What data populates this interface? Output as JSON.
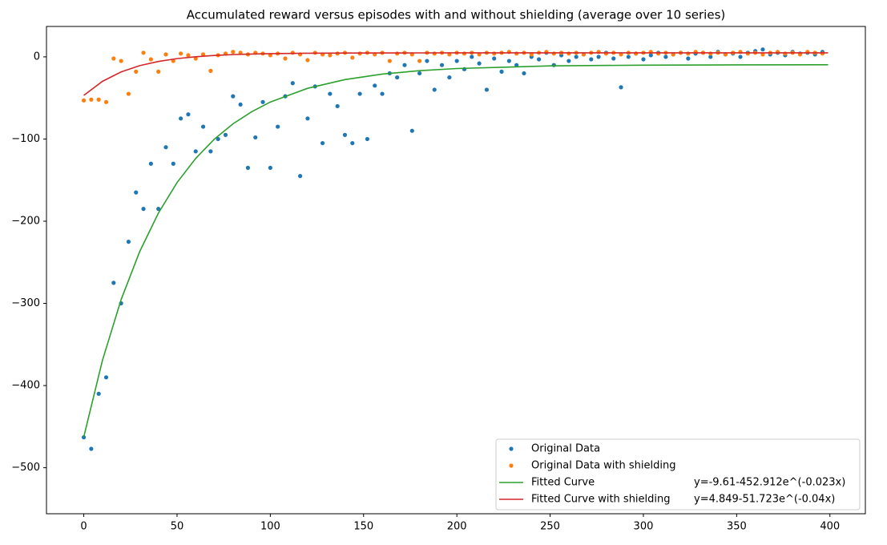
{
  "chart_data": {
    "type": "scatter_fit",
    "title": "Accumulated reward versus episodes with and without shielding (average over 10 series)",
    "xlim": [
      -20,
      419
    ],
    "ylim": [
      -556,
      37
    ],
    "xticks": [
      0,
      50,
      100,
      150,
      200,
      250,
      300,
      350,
      400
    ],
    "yticks": [
      {
        "value": -500,
        "label": "−500"
      },
      {
        "value": -400,
        "label": "−400"
      },
      {
        "value": -300,
        "label": "−300"
      },
      {
        "value": -200,
        "label": "−200"
      },
      {
        "value": -100,
        "label": "−100"
      },
      0
    ],
    "legend": "lower right",
    "series": [
      {
        "name": "Original Data",
        "kind": "points",
        "color": "#1f77b4",
        "x": [
          0,
          4,
          8,
          12,
          16,
          20,
          24,
          28,
          32,
          36,
          40,
          44,
          48,
          52,
          56,
          60,
          64,
          68,
          72,
          76,
          80,
          84,
          88,
          92,
          96,
          100,
          104,
          108,
          112,
          116,
          120,
          124,
          128,
          132,
          136,
          140,
          144,
          148,
          152,
          156,
          160,
          164,
          168,
          172,
          176,
          180,
          184,
          188,
          192,
          196,
          200,
          204,
          208,
          212,
          216,
          220,
          224,
          228,
          232,
          236,
          240,
          244,
          248,
          252,
          256,
          260,
          264,
          268,
          272,
          276,
          280,
          284,
          288,
          292,
          296,
          300,
          304,
          308,
          312,
          316,
          320,
          324,
          328,
          332,
          336,
          340,
          344,
          348,
          352,
          356,
          360,
          364,
          368,
          372,
          376,
          380,
          384,
          388,
          392,
          396
        ],
        "values": [
          -463,
          -477,
          -410,
          -390,
          -275,
          -300,
          -225,
          -165,
          -185,
          -130,
          -185,
          -110,
          -130,
          -75,
          -70,
          -115,
          -85,
          -115,
          -100,
          -95,
          -48,
          -58,
          -135,
          -98,
          -55,
          -135,
          -85,
          -48,
          -32,
          -145,
          -75,
          -36,
          -105,
          -45,
          -60,
          -95,
          -105,
          -45,
          -100,
          -35,
          -45,
          -20,
          -25,
          -10,
          -90,
          -20,
          -5,
          -40,
          -10,
          -25,
          -5,
          -15,
          0,
          -8,
          -40,
          -2,
          -18,
          -5,
          -10,
          -20,
          0,
          -3,
          5,
          -10,
          2,
          -5,
          0,
          3,
          -3,
          0,
          5,
          -2,
          -37,
          0,
          4,
          -3,
          2,
          5,
          0,
          3,
          5,
          -2,
          4,
          5,
          0,
          6,
          3,
          4,
          0,
          5,
          7,
          9,
          3,
          5,
          2,
          6,
          4,
          5,
          3,
          6
        ]
      },
      {
        "name": "Original Data with shielding",
        "kind": "points",
        "color": "#ff7f0e",
        "x": [
          0,
          4,
          8,
          12,
          16,
          20,
          24,
          28,
          32,
          36,
          40,
          44,
          48,
          52,
          56,
          60,
          64,
          68,
          72,
          76,
          80,
          84,
          88,
          92,
          96,
          100,
          104,
          108,
          112,
          116,
          120,
          124,
          128,
          132,
          136,
          140,
          144,
          148,
          152,
          156,
          160,
          164,
          168,
          172,
          176,
          180,
          184,
          188,
          192,
          196,
          200,
          204,
          208,
          212,
          216,
          220,
          224,
          228,
          232,
          236,
          240,
          244,
          248,
          252,
          256,
          260,
          264,
          268,
          272,
          276,
          280,
          284,
          288,
          292,
          296,
          300,
          304,
          308,
          312,
          316,
          320,
          324,
          328,
          332,
          336,
          340,
          344,
          348,
          352,
          356,
          360,
          364,
          368,
          372,
          376,
          380,
          384,
          388,
          392,
          396
        ],
        "values": [
          -53,
          -52,
          -52,
          -55,
          -2,
          -5,
          -45,
          -18,
          5,
          -3,
          -18,
          3,
          -5,
          4,
          2,
          -2,
          3,
          -17,
          2,
          4,
          6,
          5,
          3,
          5,
          4,
          2,
          4,
          -2,
          5,
          3,
          -4,
          5,
          3,
          2,
          4,
          5,
          -1,
          4,
          5,
          3,
          5,
          -5,
          4,
          5,
          3,
          -5,
          5,
          4,
          5,
          3,
          5,
          4,
          5,
          3,
          5,
          4,
          5,
          6,
          4,
          5,
          3,
          5,
          6,
          4,
          5,
          4,
          5,
          3,
          5,
          6,
          4,
          5,
          3,
          5,
          4,
          5,
          6,
          4,
          5,
          3,
          5,
          4,
          6,
          5,
          4,
          5,
          3,
          5,
          6,
          4,
          5,
          3,
          5,
          6,
          4,
          5,
          3,
          6,
          5,
          4
        ]
      },
      {
        "name": "Fitted Curve",
        "equation": "y=-9.61-452.912e^(-0.023x)",
        "kind": "line",
        "color": "#2ca02c",
        "x": [
          0,
          10,
          20,
          30,
          40,
          50,
          60,
          70,
          80,
          90,
          100,
          120,
          140,
          160,
          180,
          200,
          250,
          300,
          350,
          399
        ],
        "values": [
          -462.5,
          -369.4,
          -295.5,
          -236.8,
          -190.1,
          -153.0,
          -123.6,
          -100.1,
          -81.5,
          -66.8,
          -55.0,
          -38.3,
          -27.7,
          -21.0,
          -16.8,
          -14.2,
          -11.0,
          -10.1,
          -9.75,
          -9.66
        ]
      },
      {
        "name": "Fitted Curve with shielding",
        "equation": "y=4.849-51.723e^(-0.04x)",
        "kind": "line",
        "color": "#d62728",
        "x": [
          0,
          10,
          20,
          30,
          40,
          50,
          60,
          70,
          80,
          90,
          100,
          120,
          140,
          160,
          180,
          200,
          250,
          300,
          350,
          399
        ],
        "values": [
          -46.9,
          -29.8,
          -18.4,
          -10.7,
          -5.6,
          -2.15,
          0.16,
          1.71,
          2.74,
          3.44,
          3.9,
          4.42,
          4.66,
          4.77,
          4.81,
          4.83,
          4.85,
          4.85,
          4.85,
          4.85
        ]
      }
    ]
  }
}
